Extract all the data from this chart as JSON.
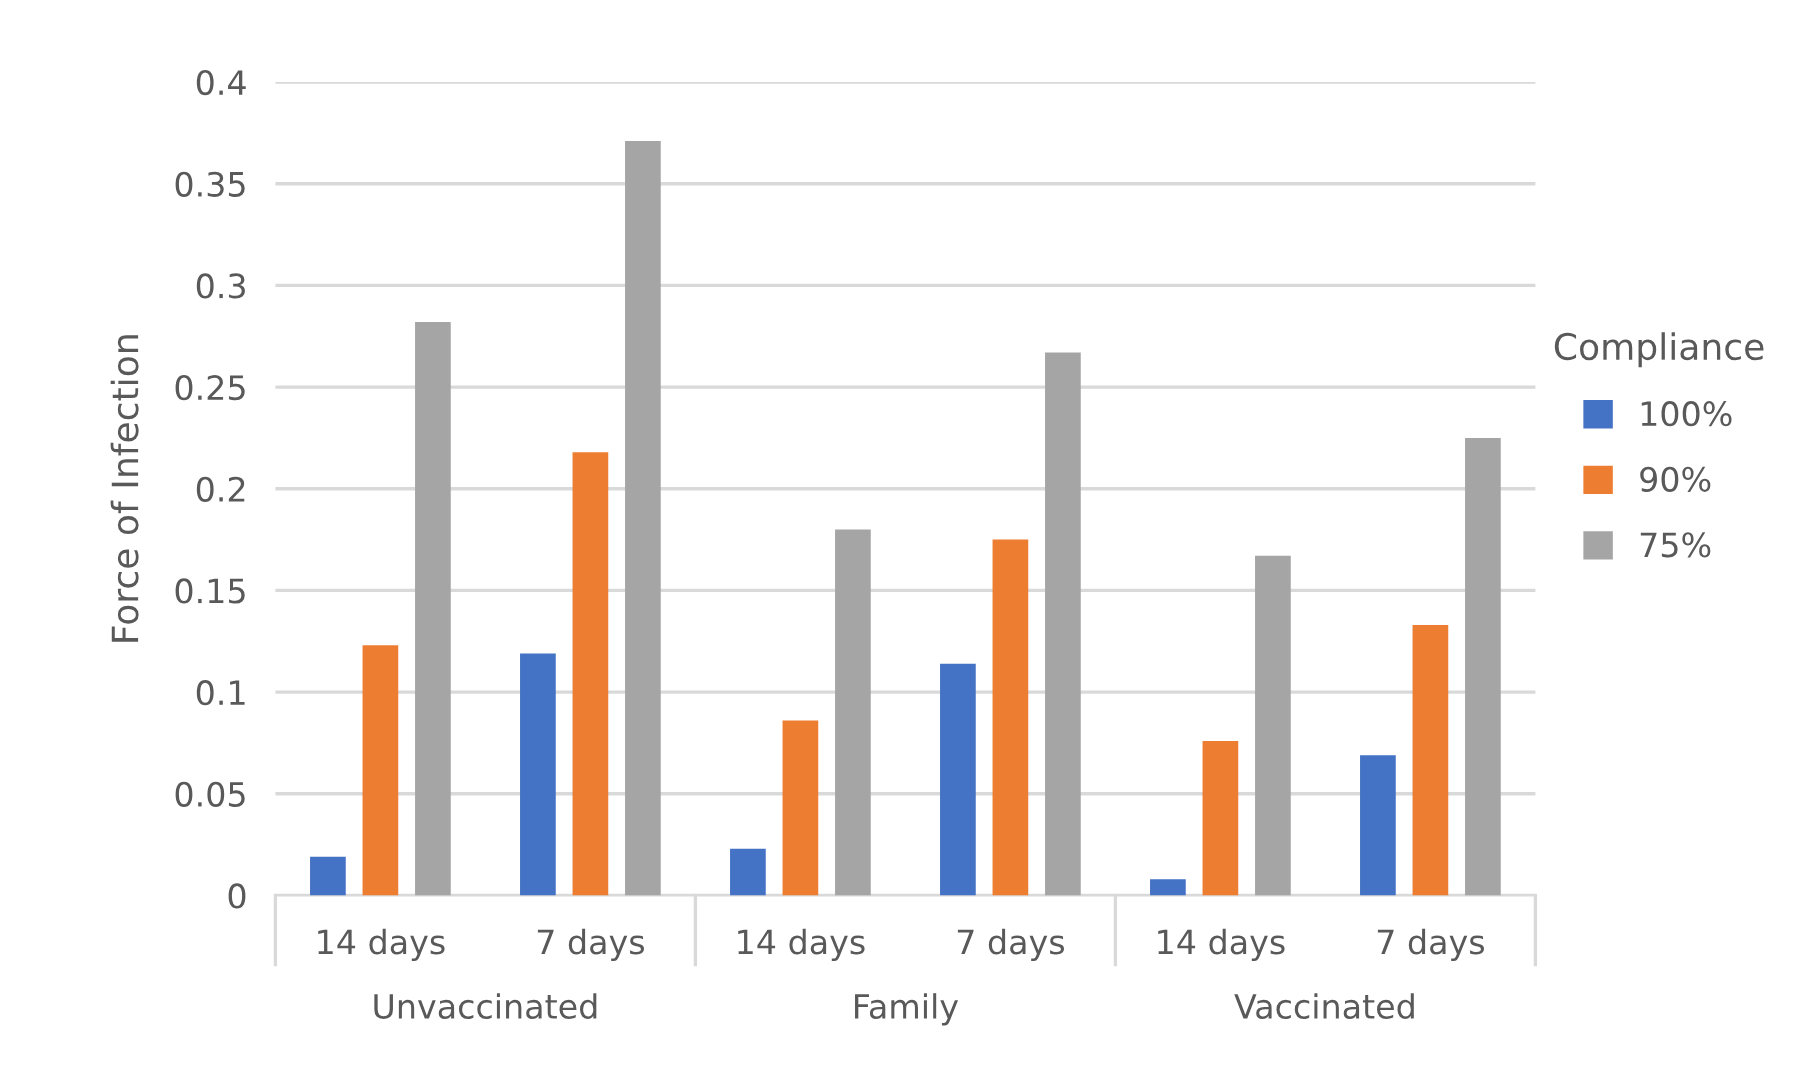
{
  "chart_data": {
    "type": "bar",
    "ylabel": "Force of Infection",
    "legend_title": "Compliance",
    "categories": [
      "14 days",
      "7 days",
      "14 days",
      "7 days",
      "14 days",
      "7 days"
    ],
    "annotations": [
      "Unvaccinated",
      "Family",
      "Vaccinated"
    ],
    "series": [
      {
        "name": "100%",
        "color": "#4472c4",
        "values": [
          0.019,
          0.119,
          0.023,
          0.114,
          0.008,
          0.069
        ]
      },
      {
        "name": "90%",
        "color": "#ed7d31",
        "values": [
          0.123,
          0.218,
          0.086,
          0.175,
          0.076,
          0.133
        ]
      },
      {
        "name": "75%",
        "color": "#a5a5a5",
        "values": [
          0.282,
          0.371,
          0.18,
          0.267,
          0.167,
          0.225
        ]
      }
    ],
    "ylim": [
      0,
      0.4
    ],
    "yticks": [
      0,
      0.05,
      0.1,
      0.15,
      0.2,
      0.25,
      0.3,
      0.35,
      0.4
    ],
    "grid": "y",
    "legend": "right"
  }
}
